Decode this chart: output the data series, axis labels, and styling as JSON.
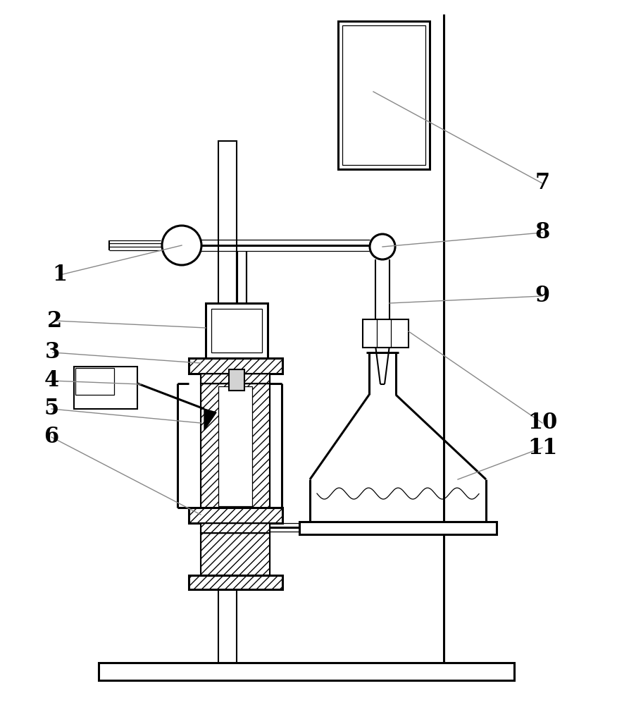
{
  "bg_color": "#ffffff",
  "line_color": "#000000",
  "label_fontsize": 22,
  "lw_thick": 2.2,
  "lw_med": 1.5,
  "lw_thin": 0.9
}
